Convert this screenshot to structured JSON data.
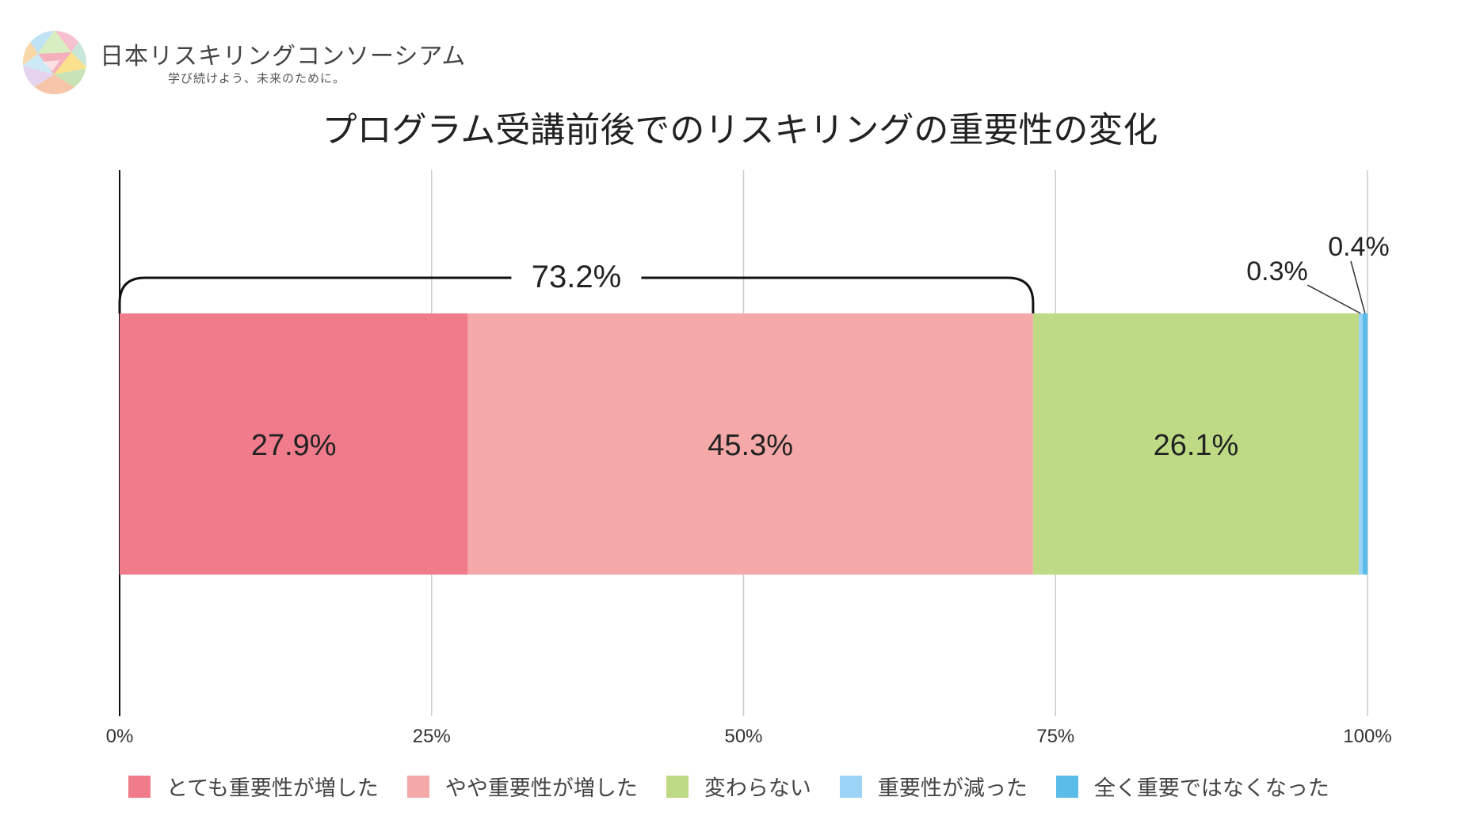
{
  "brand": {
    "name": "日本リスキリングコンソーシアム",
    "tagline": "学び続けよう、未来のために。",
    "logo_icon": "geometric-sphere-icon"
  },
  "chart_data": {
    "type": "stacked-bar-horizontal",
    "title": "プログラム受講前後でのリスキリングの重要性の変化",
    "orientation": "horizontal",
    "xlim": [
      0,
      100
    ],
    "x_ticks": [
      "0%",
      "25%",
      "50%",
      "75%",
      "100%"
    ],
    "grid": true,
    "legend_position": "bottom",
    "series": [
      {
        "name": "とても重要性が増した",
        "value": 27.9,
        "label": "27.9%",
        "color": "#ef7b8b"
      },
      {
        "name": "やや重要性が増した",
        "value": 45.3,
        "label": "45.3%",
        "color": "#f4a9a8"
      },
      {
        "name": "変わらない",
        "value": 26.1,
        "label": "26.1%",
        "color": "#bfda84"
      },
      {
        "name": "重要性が減った",
        "value": 0.3,
        "label": "0.3%",
        "color": "#9ad3f5"
      },
      {
        "name": "全く重要ではなくなった",
        "value": 0.4,
        "label": "0.4%",
        "color": "#5bbcea"
      }
    ],
    "bracket": {
      "from": 0,
      "to": 73.2,
      "label": "73.2%"
    }
  }
}
